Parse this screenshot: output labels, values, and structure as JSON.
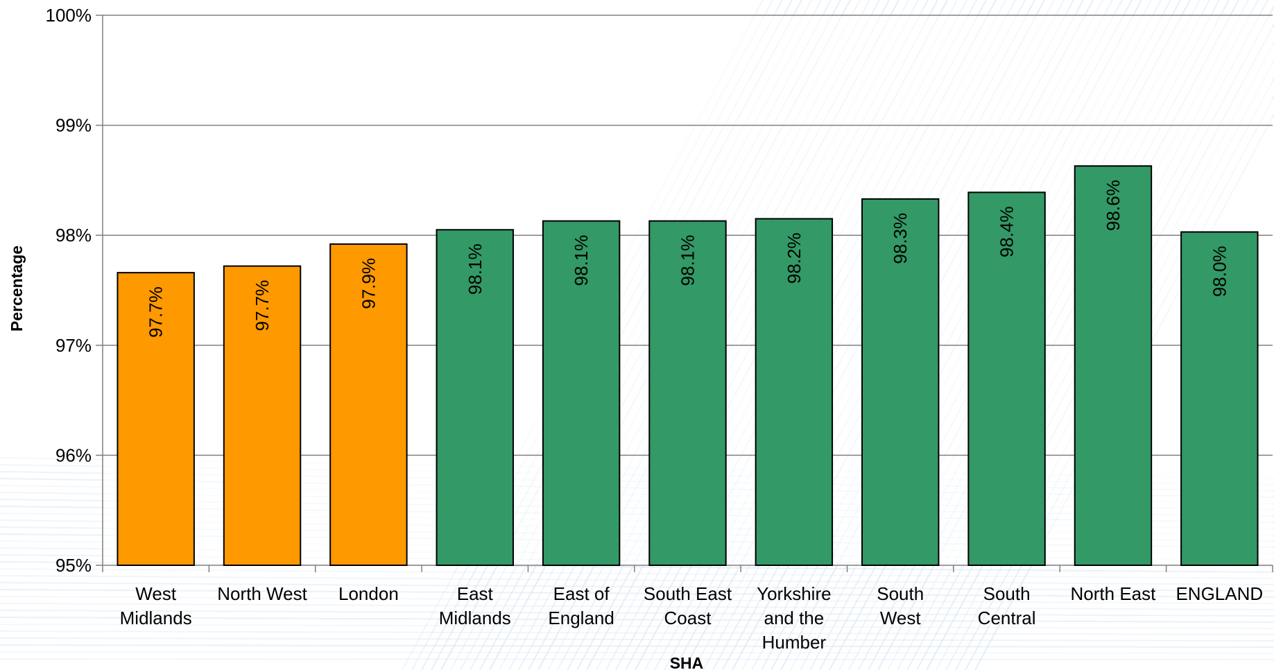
{
  "chart_data": {
    "type": "bar",
    "title": "",
    "xlabel": "SHA",
    "ylabel": "Percentage",
    "ylim": [
      0.95,
      1.0
    ],
    "yticks": [
      "95%",
      "96%",
      "97%",
      "98%",
      "99%",
      "100%"
    ],
    "grid": true,
    "legend": "none",
    "categories": [
      [
        "West",
        "Midlands"
      ],
      [
        "North West"
      ],
      [
        "London"
      ],
      [
        "East",
        "Midlands"
      ],
      [
        "East of",
        "England"
      ],
      [
        "South East",
        "Coast"
      ],
      [
        "Yorkshire",
        "and the",
        "Humber"
      ],
      [
        "South",
        "West"
      ],
      [
        "South",
        "Central"
      ],
      [
        "North East"
      ],
      [
        "ENGLAND"
      ]
    ],
    "values": [
      0.9766,
      0.9772,
      0.9792,
      0.9805,
      0.9813,
      0.9813,
      0.9815,
      0.9833,
      0.9839,
      0.9863,
      0.9803
    ],
    "data_labels": [
      "97.7%",
      "97.7%",
      "97.9%",
      "98.1%",
      "98.1%",
      "98.1%",
      "98.2%",
      "98.3%",
      "98.4%",
      "98.6%",
      "98.0%"
    ],
    "bar_colors": [
      "#FF9900",
      "#FF9900",
      "#FF9900",
      "#339966",
      "#339966",
      "#339966",
      "#339966",
      "#339966",
      "#339966",
      "#339966",
      "#339966"
    ],
    "grid_color": "#808080",
    "axis_color": "#808080",
    "bar_edge_color": "#000000"
  }
}
